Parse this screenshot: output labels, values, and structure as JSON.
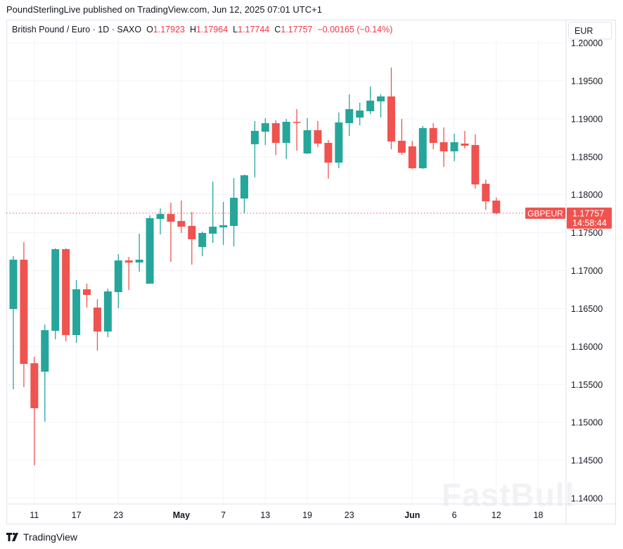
{
  "publisher_line": "PoundSterlingLive published on TradingView.com, Jun 12, 2025 07:01 UTC+1",
  "legend": {
    "symbol": "British Pound / Euro · 1D · SAXO",
    "o_label": "O",
    "o": "1.17923",
    "h_label": "H",
    "h": "1.17964",
    "l_label": "L",
    "l": "1.17744",
    "c_label": "C",
    "c": "1.17757",
    "change": "−0.00165 (−0.14%)"
  },
  "currency_button": "EUR",
  "last_price": {
    "symbol": "GBPEUR",
    "price": "1.17757",
    "countdown": "14:58:44"
  },
  "footer_brand": "TradingView",
  "watermark": "FastBull",
  "colors": {
    "up": "#26a69a",
    "down": "#ef5350",
    "grid": "#f0f3fa",
    "text": "#131722"
  },
  "chart_data": {
    "type": "candlestick",
    "ylim": [
      1.14,
      1.2
    ],
    "y_ticks": [
      "1.20000",
      "1.19500",
      "1.19000",
      "1.18500",
      "1.18000",
      "1.17500",
      "1.17000",
      "1.16500",
      "1.16000",
      "1.15500",
      "1.15000",
      "1.14500",
      "1.14000"
    ],
    "x_ticks": [
      {
        "label": "11",
        "date": "2025-04-11"
      },
      {
        "label": "17",
        "date": "2025-04-17"
      },
      {
        "label": "23",
        "date": "2025-04-23"
      },
      {
        "label": "May",
        "date": "2025-05-01",
        "bold": true
      },
      {
        "label": "7",
        "date": "2025-05-07"
      },
      {
        "label": "13",
        "date": "2025-05-13"
      },
      {
        "label": "19",
        "date": "2025-05-19"
      },
      {
        "label": "23",
        "date": "2025-05-23"
      },
      {
        "label": "Jun",
        "date": "2025-06-02",
        "bold": true
      },
      {
        "label": "6",
        "date": "2025-06-06"
      },
      {
        "label": "12",
        "date": "2025-06-12"
      },
      {
        "label": "18",
        "date": "2025-06-18"
      }
    ],
    "grid": true,
    "columns": [
      "date",
      "open",
      "high",
      "low",
      "close"
    ],
    "candles": [
      [
        "2025-04-09",
        1.16494,
        1.1719,
        1.15437,
        1.17144
      ],
      [
        "2025-04-10",
        1.17144,
        1.17375,
        1.15465,
        1.15771
      ],
      [
        "2025-04-11",
        1.1578,
        1.15864,
        1.14436,
        1.15187
      ],
      [
        "2025-04-14",
        1.15669,
        1.1629,
        1.15011,
        1.16216
      ],
      [
        "2025-04-15",
        1.16207,
        1.17292,
        1.16096,
        1.17283
      ],
      [
        "2025-04-16",
        1.17283,
        1.17292,
        1.16068,
        1.16151
      ],
      [
        "2025-04-17",
        1.16151,
        1.16875,
        1.16049,
        1.16754
      ],
      [
        "2025-04-18",
        1.16754,
        1.16828,
        1.16513,
        1.1668
      ],
      [
        "2025-04-21",
        1.16513,
        1.16624,
        1.15947,
        1.16198
      ],
      [
        "2025-04-22",
        1.16198,
        1.16763,
        1.16123,
        1.16726
      ],
      [
        "2025-04-23",
        1.16717,
        1.17218,
        1.16504,
        1.17134
      ],
      [
        "2025-04-24",
        1.17134,
        1.17181,
        1.16745,
        1.17107
      ],
      [
        "2025-04-25",
        1.17107,
        1.17487,
        1.16986,
        1.17144
      ],
      [
        "2025-04-28",
        1.16828,
        1.17728,
        1.16828,
        1.17691
      ],
      [
        "2025-04-29",
        1.17681,
        1.17821,
        1.17478,
        1.17746
      ],
      [
        "2025-04-30",
        1.17746,
        1.17895,
        1.17116,
        1.17644
      ],
      [
        "2025-05-01",
        1.17654,
        1.17923,
        1.17496,
        1.17579
      ],
      [
        "2025-05-02",
        1.17589,
        1.17774,
        1.17079,
        1.17413
      ],
      [
        "2025-05-05",
        1.17311,
        1.17515,
        1.1719,
        1.17496
      ],
      [
        "2025-05-06",
        1.17487,
        1.18173,
        1.17366,
        1.17579
      ],
      [
        "2025-05-07",
        1.1757,
        1.17904,
        1.17338,
        1.17598
      ],
      [
        "2025-05-08",
        1.17589,
        1.18219,
        1.1732,
        1.1796
      ],
      [
        "2025-05-09",
        1.1795,
        1.18266,
        1.17756,
        1.18256
      ],
      [
        "2025-05-12",
        1.18665,
        1.18971,
        1.18229,
        1.18841
      ],
      [
        "2025-05-13",
        1.18831,
        1.19008,
        1.18655,
        1.18943
      ],
      [
        "2025-05-14",
        1.18943,
        1.1898,
        1.18525,
        1.18683
      ],
      [
        "2025-05-15",
        1.18683,
        1.18998,
        1.1847,
        1.18961
      ],
      [
        "2025-05-16",
        1.18961,
        1.19128,
        1.18581,
        1.18952
      ],
      [
        "2025-05-19",
        1.18544,
        1.19008,
        1.18535,
        1.1885
      ],
      [
        "2025-05-20",
        1.1885,
        1.18971,
        1.18627,
        1.18674
      ],
      [
        "2025-05-21",
        1.18683,
        1.1872,
        1.1821,
        1.18423
      ],
      [
        "2025-05-22",
        1.18423,
        1.19082,
        1.18349,
        1.18952
      ],
      [
        "2025-05-23",
        1.18943,
        1.19323,
        1.18776,
        1.19128
      ],
      [
        "2025-05-26",
        1.19017,
        1.19212,
        1.18915,
        1.1911
      ],
      [
        "2025-05-27",
        1.191,
        1.19425,
        1.19063,
        1.1924
      ],
      [
        "2025-05-28",
        1.1923,
        1.19323,
        1.19017,
        1.19295
      ],
      [
        "2025-05-29",
        1.19295,
        1.19675,
        1.186,
        1.18702
      ],
      [
        "2025-05-30",
        1.18711,
        1.18998,
        1.18525,
        1.18553
      ],
      [
        "2025-06-02",
        1.18637,
        1.18711,
        1.1834,
        1.18349
      ],
      [
        "2025-06-03",
        1.18349,
        1.18906,
        1.1834,
        1.18878
      ],
      [
        "2025-06-04",
        1.18878,
        1.18943,
        1.186,
        1.18683
      ],
      [
        "2025-06-05",
        1.18692,
        1.18887,
        1.18368,
        1.18572
      ],
      [
        "2025-06-06",
        1.18572,
        1.18804,
        1.18442,
        1.18692
      ],
      [
        "2025-06-09",
        1.18674,
        1.18841,
        1.18609,
        1.18646
      ],
      [
        "2025-06-10",
        1.18655,
        1.18794,
        1.1808,
        1.18136
      ],
      [
        "2025-06-11",
        1.18145,
        1.18201,
        1.17802,
        1.17913
      ],
      [
        "2025-06-12",
        1.17923,
        1.17964,
        1.17744,
        1.17757
      ]
    ]
  }
}
